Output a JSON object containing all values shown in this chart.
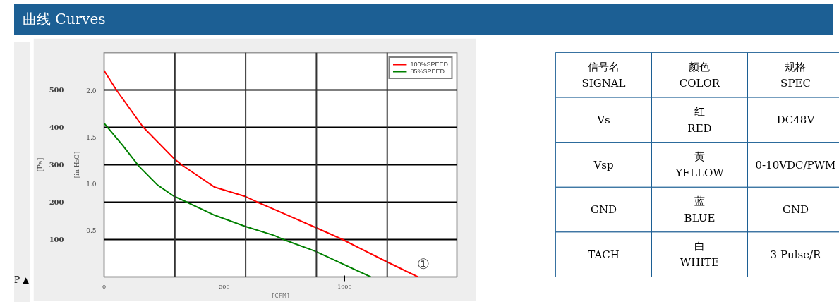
{
  "chart_data": [
    {
      "type": "line",
      "title": "曲线 Curves",
      "xlabel": "[CFM]",
      "ylabel": "[Pa]",
      "y2label": "[in H₂O]",
      "xlim": [
        0,
        1467
      ],
      "xticks": [
        0,
        500,
        1000
      ],
      "ylim": [
        0,
        600
      ],
      "yticks": [
        100,
        200,
        300,
        400,
        500
      ],
      "y2lim": [
        0,
        2.409
      ],
      "y2ticks": [
        {
          "value": 0.5,
          "label": "0.5"
        },
        {
          "value": 1.0,
          "label": "1.0"
        },
        {
          "value": 1.5,
          "label": "1.5"
        },
        {
          "value": 2.0,
          "label": "2.0"
        }
      ],
      "grid": "y",
      "legend": "top right",
      "marker": "none",
      "line_style": "solid",
      "ref_lines": [
        {
          "axis": "x",
          "value": 294.3,
          "color": "#333333"
        },
        {
          "axis": "x",
          "value": 588.6,
          "color": "#333333"
        },
        {
          "axis": "x",
          "value": 882.9,
          "color": "#333333"
        },
        {
          "axis": "x",
          "value": 1177.2,
          "color": "#333333"
        }
      ],
      "annotations": [
        "P ▲",
        "①"
      ],
      "series": [
        {
          "name": "100%SPEED",
          "color": "#ff0000",
          "x": [
            0,
            51,
            162,
            290,
            324,
            460,
            588,
            634,
            707,
            877,
            992,
            1171,
            1305
          ],
          "values": [
            552,
            500,
            401,
            317,
            299,
            240,
            215,
            201,
            181,
            133,
            100,
            42,
            0
          ]
        },
        {
          "name": "85%SPEED",
          "color": "#008000",
          "x": [
            0,
            77,
            145,
            222,
            290,
            341,
            460,
            588,
            707,
            754,
            877,
            1109
          ],
          "values": [
            411,
            352,
            296,
            246,
            216,
            201,
            165,
            135,
            111,
            98,
            69,
            0
          ]
        }
      ]
    },
    {
      "type": "other",
      "annotations": [
        "信号名\nSIGNAL",
        "颜色\nCOLOR",
        "规格\nSPEC",
        "Vs",
        "红\nRED",
        "DC48V",
        "Vsp",
        "黄\nYELLOW",
        "0-10VDC/PWM",
        "GND",
        "蓝\nBLUE",
        "GND",
        "TACH",
        "白\nWHITE",
        "3 Pulse/R"
      ]
    }
  ]
}
